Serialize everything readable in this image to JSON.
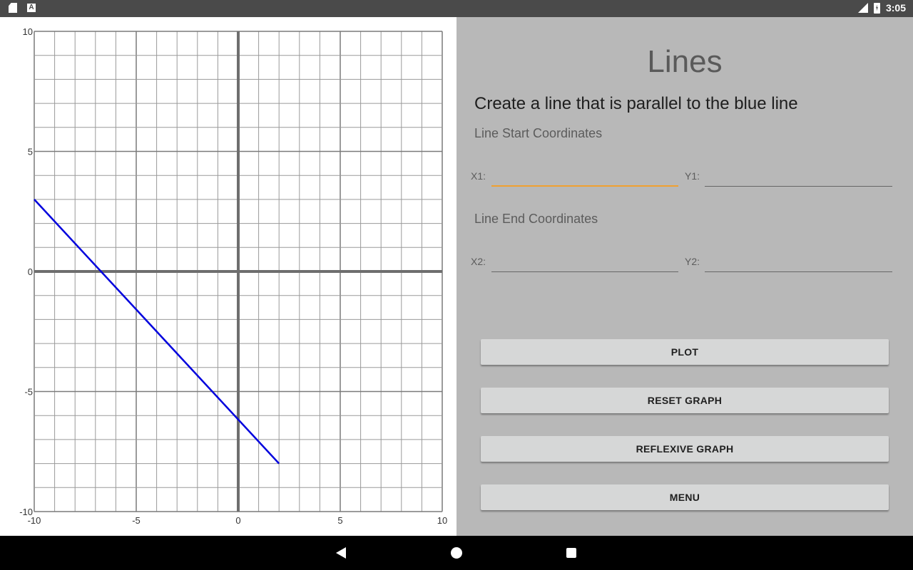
{
  "status_bar": {
    "time": "3:05",
    "network": "LTE",
    "left_icons": [
      "sd-card-icon",
      "a-icon"
    ],
    "a_icon_text": "A"
  },
  "app": {
    "title": "Lines",
    "instruction": "Create a line that is parallel to the blue line",
    "start_section": "Line Start Coordinates",
    "end_section": "Line End Coordinates",
    "fields": {
      "x1": {
        "label": "X1:",
        "value": ""
      },
      "y1": {
        "label": "Y1:",
        "value": ""
      },
      "x2": {
        "label": "X2:",
        "value": ""
      },
      "y2": {
        "label": "Y2:",
        "value": ""
      }
    },
    "focused_field": "x1",
    "buttons": {
      "plot": "PLOT",
      "reset": "RESET GRAPH",
      "reflexive": "REFLEXIVE GRAPH",
      "menu": "MENU"
    }
  },
  "colors": {
    "line": "#0000dd",
    "focus_underline": "#f0a030",
    "panel_background": "#b8b8b8",
    "button_background": "#d6d7d7"
  },
  "chart_data": {
    "type": "line",
    "xlim": [
      -10,
      10
    ],
    "ylim": [
      -10,
      10
    ],
    "x_ticks": [
      -10,
      -5,
      0,
      5,
      10
    ],
    "y_ticks": [
      -10,
      -5,
      0,
      5,
      10
    ],
    "grid": true,
    "grid_step": 1,
    "series": [
      {
        "color": "#0000dd",
        "x": [
          -10,
          2
        ],
        "y": [
          3,
          -8
        ]
      }
    ]
  },
  "nav_bar": {
    "icons": [
      "back-icon",
      "home-icon",
      "recents-icon"
    ]
  }
}
